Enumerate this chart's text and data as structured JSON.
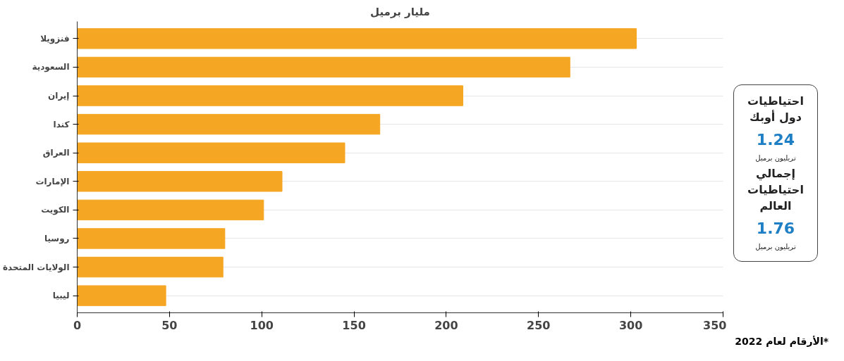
{
  "chart_data": {
    "type": "bar",
    "orientation": "horizontal",
    "title": "مليار برميل",
    "categories": [
      "فنزويلا",
      "السعودية",
      "إيران",
      "كندا",
      "العراق",
      "الإمارات",
      "الكويت",
      "روسيا",
      "الولايات المتحدة",
      "ليبيا"
    ],
    "values": [
      303,
      267,
      209,
      164,
      145,
      111,
      101,
      80,
      79,
      48
    ],
    "color": "#f5a623",
    "xlim": [
      0,
      350
    ],
    "xticks": [
      0,
      50,
      100,
      150,
      200,
      250,
      300,
      350
    ],
    "grid": "y",
    "annotations": [
      "احتياطيات دول أوبك",
      "1.24",
      "تريليون برميل",
      "إجمالي احتياطيات العالم",
      "1.76",
      "تريليون برميل",
      "*الأرقام لعام 2022"
    ]
  }
}
